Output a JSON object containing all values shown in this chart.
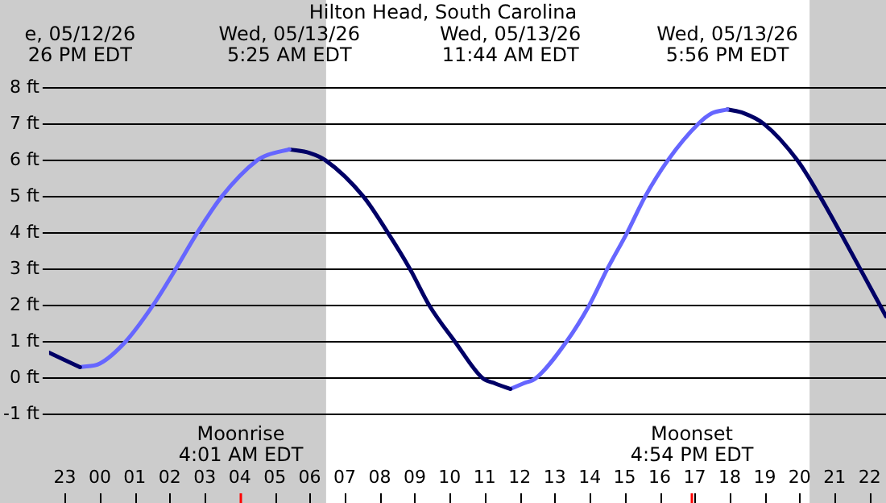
{
  "chart_data": {
    "type": "line",
    "title": "Hilton Head, South Carolina",
    "series": [
      {
        "color": "#000066",
        "x": [
          "--05-12T22:33",
          "--05-12T23:26"
        ],
        "values": [
          0.7,
          0.3
        ]
      },
      {
        "color": "#6666ff",
        "x": [
          "--05-12T23:26",
          "--05-13T00:00",
          "--05-13T00:44",
          "--05-13T01:31",
          "--05-13T02:10",
          "--05-13T02:47",
          "--05-13T03:29",
          "--05-13T04:30",
          "--05-13T04:48",
          "--05-13T05:25"
        ],
        "values": [
          0.3,
          0.4,
          1,
          2,
          3,
          4,
          5,
          6,
          6.15,
          6.3
        ]
      },
      {
        "color": "#000066",
        "x": [
          "--05-13T05:25",
          "--05-13T06:00",
          "--05-13T06:27",
          "--05-13T07:32",
          "--05-13T08:14",
          "--05-13T08:52",
          "--05-13T09:25",
          "--05-13T10:09",
          "--05-13T10:56",
          "--05-13T11:18",
          "--05-13T11:44"
        ],
        "values": [
          6.3,
          6.2,
          6,
          5,
          4,
          3,
          2,
          1,
          0,
          -0.15,
          -0.3
        ]
      },
      {
        "color": "#6666ff",
        "x": [
          "--05-13T11:44",
          "--05-13T12:06",
          "--05-13T12:28",
          "--05-13T13:20",
          "--05-13T13:59",
          "--05-13T14:30",
          "--05-13T15:04",
          "--05-13T15:35",
          "--05-13T16:14",
          "--05-13T17:06",
          "--05-13T17:30",
          "--05-13T17:56"
        ],
        "values": [
          -0.3,
          -0.15,
          0,
          1,
          2,
          3,
          4,
          5,
          6,
          7,
          7.3,
          7.4
        ]
      },
      {
        "color": "#000066",
        "x": [
          "--05-13T17:56",
          "--05-13T18:24",
          "--05-13T18:59",
          "--05-13T19:56",
          "--05-13T20:35",
          "--05-13T21:10",
          "--05-13T21:44",
          "--05-13T22:28"
        ],
        "values": [
          7.4,
          7.3,
          7,
          6,
          5,
          4,
          3,
          1.7
        ]
      }
    ],
    "annotations": [
      "e, 05/12/26\n26 PM EDT",
      "Wed, 05/13/26\n5:25 AM EDT",
      "Wed, 05/13/26\n11:44 AM EDT",
      "Wed, 05/13/26\n5:56 PM EDT"
    ],
    "ref_lines": [
      {
        "axis": "x",
        "value": "--05-13T04:01",
        "label": "Moonrise\n4:01 AM EDT",
        "color": "#ff0000"
      },
      {
        "axis": "x",
        "value": "--05-13T16:54",
        "label": "Moonset\n4:54 PM EDT",
        "color": "#ff0000"
      }
    ],
    "bands": [
      {
        "axis": "x",
        "from": "--05-12T22:33",
        "to": "--05-13T06:28",
        "color": "#cccccc"
      },
      {
        "axis": "x",
        "from": "--05-13T20:17",
        "to": "--05-13T22:28",
        "color": "#cccccc"
      }
    ],
    "xlim": [
      "--05-12T22:33",
      "--05-13T22:28"
    ],
    "xticks": [
      {
        "value": "--05-12T23:00",
        "label": "23"
      },
      {
        "value": "--05-13T00:00",
        "label": "00"
      },
      {
        "value": "--05-13T01:00",
        "label": "01"
      },
      {
        "value": "--05-13T02:00",
        "label": "02"
      },
      {
        "value": "--05-13T03:00",
        "label": "03"
      },
      {
        "value": "--05-13T04:00",
        "label": "04"
      },
      {
        "value": "--05-13T05:00",
        "label": "05"
      },
      {
        "value": "--05-13T06:00",
        "label": "06"
      },
      {
        "value": "--05-13T07:00",
        "label": "07"
      },
      {
        "value": "--05-13T08:00",
        "label": "08"
      },
      {
        "value": "--05-13T09:00",
        "label": "09"
      },
      {
        "value": "--05-13T10:00",
        "label": "10"
      },
      {
        "value": "--05-13T11:00",
        "label": "11"
      },
      {
        "value": "--05-13T12:00",
        "label": "12"
      },
      {
        "value": "--05-13T13:00",
        "label": "13"
      },
      {
        "value": "--05-13T14:00",
        "label": "14"
      },
      {
        "value": "--05-13T15:00",
        "label": "15"
      },
      {
        "value": "--05-13T16:00",
        "label": "16"
      },
      {
        "value": "--05-13T17:00",
        "label": "17"
      },
      {
        "value": "--05-13T18:00",
        "label": "18"
      },
      {
        "value": "--05-13T19:00",
        "label": "19"
      },
      {
        "value": "--05-13T20:00",
        "label": "20"
      },
      {
        "value": "--05-13T21:00",
        "label": "21"
      },
      {
        "value": "--05-13T22:00",
        "label": "22"
      }
    ],
    "ylim": [
      -1,
      8
    ],
    "yticks": [
      {
        "value": -1,
        "label": "-1 ft"
      },
      {
        "value": 0,
        "label": "0 ft"
      },
      {
        "value": 1,
        "label": "1 ft"
      },
      {
        "value": 2,
        "label": "2 ft"
      },
      {
        "value": 3,
        "label": "3 ft"
      },
      {
        "value": 4,
        "label": "4 ft"
      },
      {
        "value": 5,
        "label": "5 ft"
      },
      {
        "value": 6,
        "label": "6 ft"
      },
      {
        "value": 7,
        "label": "7 ft"
      },
      {
        "value": 8,
        "label": "8 ft"
      }
    ],
    "grid": "y",
    "legend": false,
    "marker": "none",
    "line_style": "solid"
  }
}
